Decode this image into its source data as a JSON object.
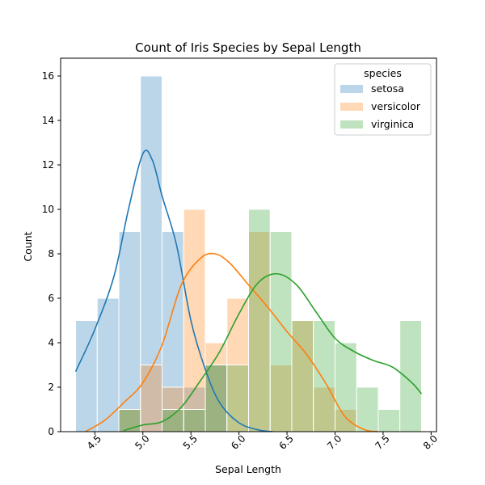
{
  "chart_data": {
    "type": "histogram",
    "title": "Count of Iris Species by Sepal Length",
    "xlabel": "Sepal Length",
    "ylabel": "Count",
    "xlim": [
      4.144,
      8.056
    ],
    "ylim": [
      0,
      16.8
    ],
    "bin_edges": [
      4.3,
      4.525,
      4.75,
      4.975,
      5.2,
      5.425,
      5.65,
      5.875,
      6.1,
      6.325,
      6.55,
      6.775,
      7.0,
      7.225,
      7.45,
      7.675,
      7.9
    ],
    "x_ticks": [
      {
        "value": 4.5,
        "label": "4.5"
      },
      {
        "value": 5.0,
        "label": "5.0"
      },
      {
        "value": 5.5,
        "label": "5.5"
      },
      {
        "value": 6.0,
        "label": "6.0"
      },
      {
        "value": 6.5,
        "label": "6.5"
      },
      {
        "value": 7.0,
        "label": "7.0"
      },
      {
        "value": 7.5,
        "label": "7.5"
      },
      {
        "value": 8.0,
        "label": "8.0"
      }
    ],
    "y_ticks": [
      {
        "value": 0,
        "label": "0"
      },
      {
        "value": 2,
        "label": "2"
      },
      {
        "value": 4,
        "label": "4"
      },
      {
        "value": 6,
        "label": "6"
      },
      {
        "value": 8,
        "label": "8"
      },
      {
        "value": 10,
        "label": "10"
      },
      {
        "value": 12,
        "label": "12"
      },
      {
        "value": 14,
        "label": "14"
      },
      {
        "value": 16,
        "label": "16"
      }
    ],
    "legend": {
      "title": "species",
      "position": "top-right"
    },
    "series": [
      {
        "name": "setosa",
        "color": "#1f77b4",
        "counts": [
          5,
          6,
          9,
          16,
          9,
          2,
          3,
          0,
          0,
          0,
          0,
          0,
          0,
          0,
          0,
          0
        ],
        "kde": [
          [
            4.3,
            2.7
          ],
          [
            4.5,
            4.6
          ],
          [
            4.7,
            7.0
          ],
          [
            4.85,
            10.0
          ],
          [
            5.0,
            12.5
          ],
          [
            5.1,
            12.2
          ],
          [
            5.2,
            10.6
          ],
          [
            5.35,
            8.4
          ],
          [
            5.5,
            5.0
          ],
          [
            5.65,
            2.8
          ],
          [
            5.8,
            1.3
          ],
          [
            6.0,
            0.4
          ],
          [
            6.2,
            0.08
          ],
          [
            6.35,
            0.0
          ]
        ]
      },
      {
        "name": "versicolor",
        "color": "#ff7f0e",
        "counts": [
          0,
          0,
          1,
          3,
          2,
          10,
          4,
          6,
          9,
          3,
          5,
          2,
          1,
          0,
          0,
          0
        ],
        "kde": [
          [
            4.4,
            0.0
          ],
          [
            4.6,
            0.5
          ],
          [
            4.8,
            1.3
          ],
          [
            5.0,
            2.2
          ],
          [
            5.2,
            3.9
          ],
          [
            5.4,
            6.6
          ],
          [
            5.6,
            7.8
          ],
          [
            5.75,
            8.0
          ],
          [
            5.9,
            7.6
          ],
          [
            6.1,
            6.6
          ],
          [
            6.3,
            5.6
          ],
          [
            6.5,
            4.5
          ],
          [
            6.7,
            3.5
          ],
          [
            6.9,
            2.2
          ],
          [
            7.1,
            0.7
          ],
          [
            7.3,
            0.1
          ],
          [
            7.45,
            0.0
          ]
        ]
      },
      {
        "name": "virginica",
        "color": "#2ca02c",
        "counts": [
          0,
          0,
          1,
          0,
          1,
          1,
          3,
          3,
          10,
          9,
          5,
          5,
          4,
          2,
          1,
          5
        ],
        "kde": [
          [
            4.8,
            0.05
          ],
          [
            5.0,
            0.3
          ],
          [
            5.2,
            0.45
          ],
          [
            5.4,
            1.1
          ],
          [
            5.6,
            2.3
          ],
          [
            5.8,
            3.6
          ],
          [
            6.0,
            5.3
          ],
          [
            6.2,
            6.7
          ],
          [
            6.4,
            7.1
          ],
          [
            6.6,
            6.6
          ],
          [
            6.8,
            5.4
          ],
          [
            7.0,
            4.2
          ],
          [
            7.2,
            3.6
          ],
          [
            7.4,
            3.2
          ],
          [
            7.6,
            2.9
          ],
          [
            7.8,
            2.2
          ],
          [
            7.9,
            1.7
          ]
        ]
      }
    ]
  }
}
